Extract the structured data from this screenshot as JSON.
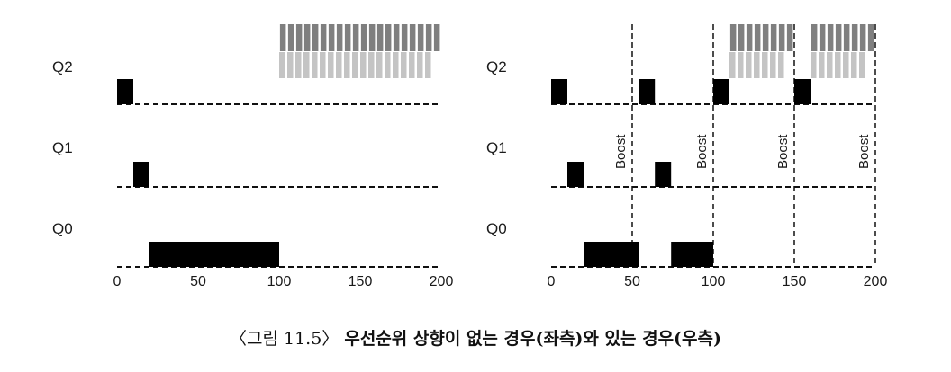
{
  "caption": {
    "prefix": "〈그림 11.5〉",
    "text": "우선순위 상향이 없는 경우(좌측)와 있는 경우(우측)"
  },
  "colors": {
    "run": "#000000",
    "io_dark": "#7f7f7f",
    "io_light": "#c4c4c4",
    "line": "#111111"
  },
  "queues": [
    "Q2",
    "Q1",
    "Q0"
  ],
  "x_ticks": [
    0,
    50,
    100,
    150,
    200
  ],
  "boost_label": "Boost",
  "panels": [
    {
      "id": "left",
      "runs": [
        {
          "queue": "Q2",
          "start": 0,
          "end": 10
        },
        {
          "queue": "Q1",
          "start": 10,
          "end": 20
        },
        {
          "queue": "Q0",
          "start": 20,
          "end": 100
        }
      ],
      "io_patterns": [
        {
          "start": 100,
          "end": 200,
          "offset": 0
        }
      ],
      "boosts": []
    },
    {
      "id": "right",
      "runs": [
        {
          "queue": "Q2",
          "start": 0,
          "end": 10
        },
        {
          "queue": "Q1",
          "start": 10,
          "end": 20
        },
        {
          "queue": "Q0",
          "start": 20,
          "end": 54
        },
        {
          "queue": "Q2",
          "start": 54,
          "end": 64
        },
        {
          "queue": "Q1",
          "start": 64,
          "end": 74
        },
        {
          "queue": "Q0",
          "start": 74,
          "end": 100
        },
        {
          "queue": "Q2",
          "start": 100,
          "end": 110
        },
        {
          "queue": "Q2",
          "start": 150,
          "end": 160
        }
      ],
      "io_patterns": [
        {
          "start": 110,
          "end": 150,
          "offset": 0
        },
        {
          "start": 160,
          "end": 200,
          "offset": 0
        }
      ],
      "boosts": [
        50,
        100,
        150,
        200
      ]
    }
  ]
}
